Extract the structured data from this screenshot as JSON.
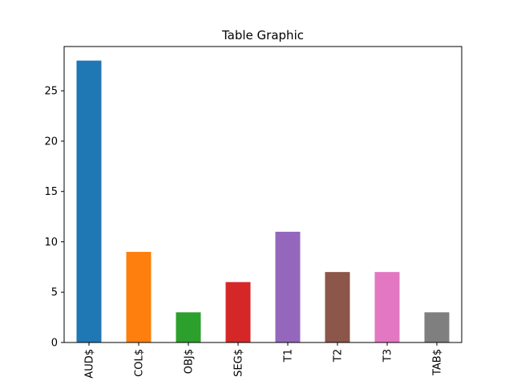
{
  "chart_data": {
    "type": "bar",
    "title": "Table Graphic",
    "xlabel": "",
    "ylabel": "",
    "categories": [
      "AUD$",
      "COL$",
      "OBJ$",
      "SEG$",
      "T1",
      "T2",
      "T3",
      "TAB$"
    ],
    "values": [
      28,
      9,
      3,
      6,
      11,
      7,
      7,
      3
    ],
    "colors": [
      "#1f77b4",
      "#ff7f0e",
      "#2ca02c",
      "#d62728",
      "#9467bd",
      "#8c564b",
      "#e377c2",
      "#7f7f7f"
    ],
    "ylim": [
      0,
      29.4
    ],
    "yticks": [
      0,
      5,
      10,
      15,
      20,
      25
    ],
    "ytick_labels": [
      "0",
      "5",
      "10",
      "15",
      "20",
      "25"
    ],
    "grid": false,
    "legend": "none",
    "x_tick_rotation": "vertical"
  }
}
